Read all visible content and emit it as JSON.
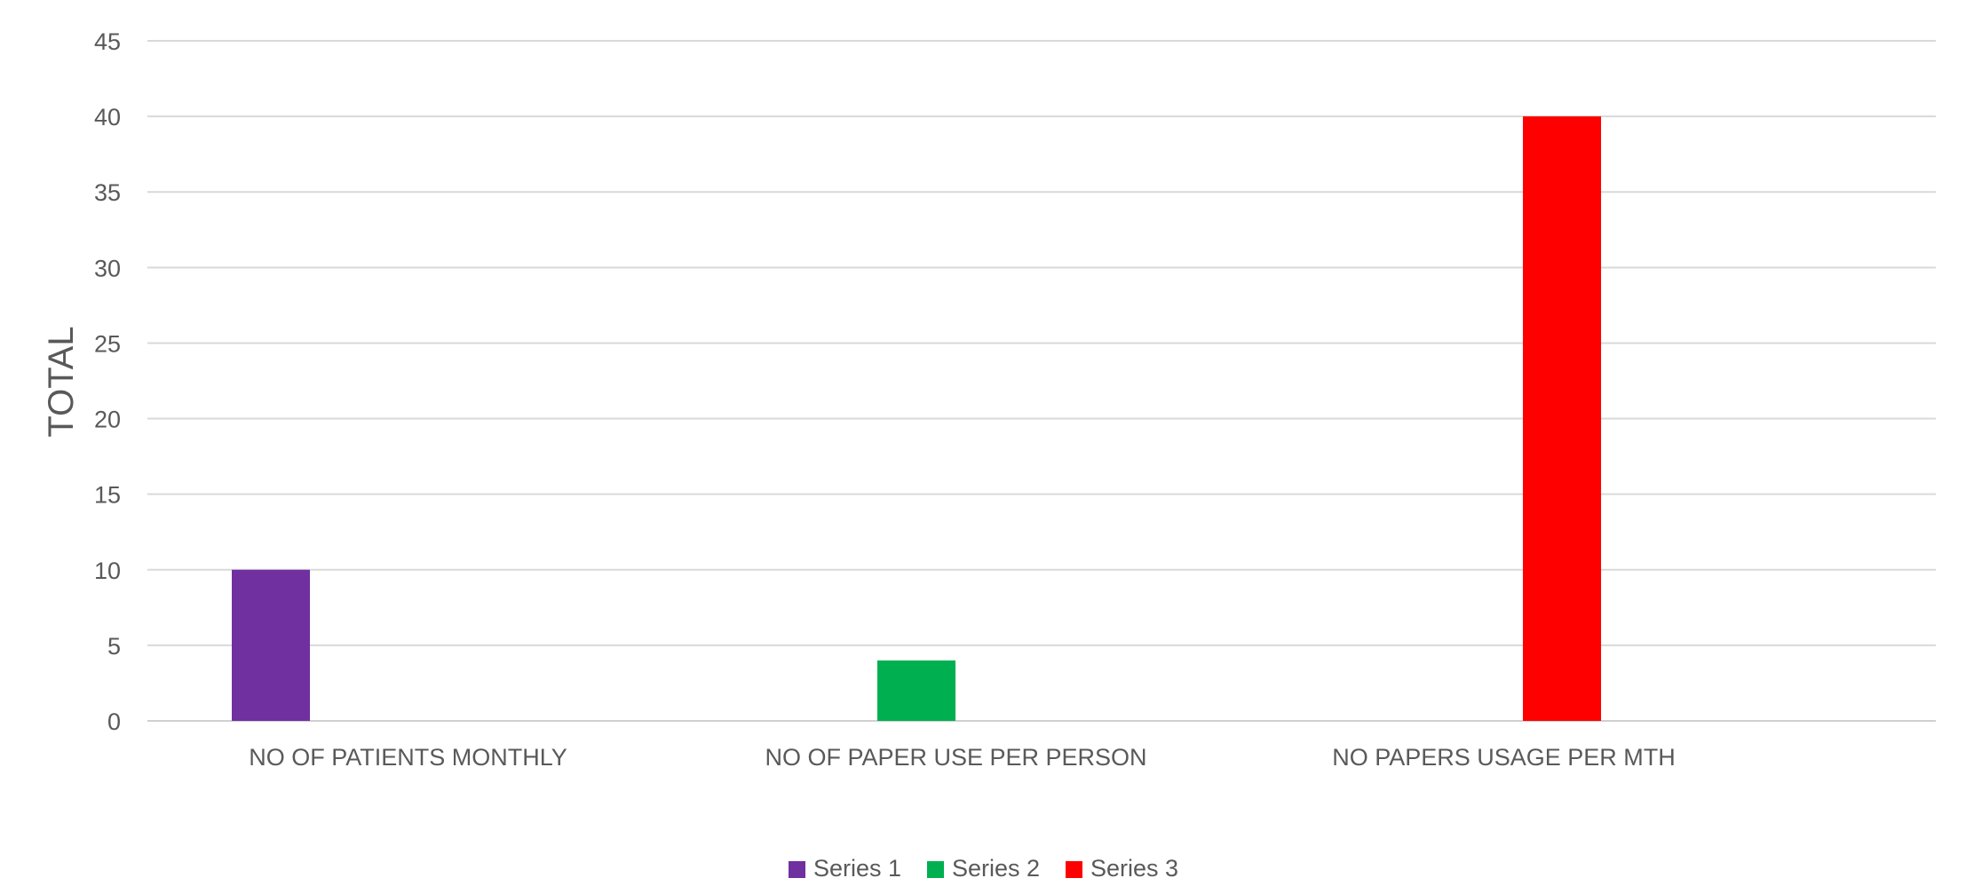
{
  "chart_data": {
    "type": "bar",
    "title": "",
    "xlabel": "",
    "ylabel": "TOTAL",
    "ylim": [
      0,
      45
    ],
    "ytick_step": 5,
    "grid": true,
    "legend_position": "bottom",
    "categories": [
      "NO OF PATIENTS MONTHLY",
      "NO OF PAPER USE PER PERSON",
      "NO PAPERS USAGE PER MTH"
    ],
    "series": [
      {
        "name": "Series 1",
        "color": "#7030A0",
        "values": [
          10,
          null,
          null
        ]
      },
      {
        "name": "Series 2",
        "color": "#00B050",
        "values": [
          null,
          4,
          null
        ]
      },
      {
        "name": "Series 3",
        "color": "#FF0000",
        "values": [
          null,
          null,
          40
        ]
      }
    ]
  }
}
